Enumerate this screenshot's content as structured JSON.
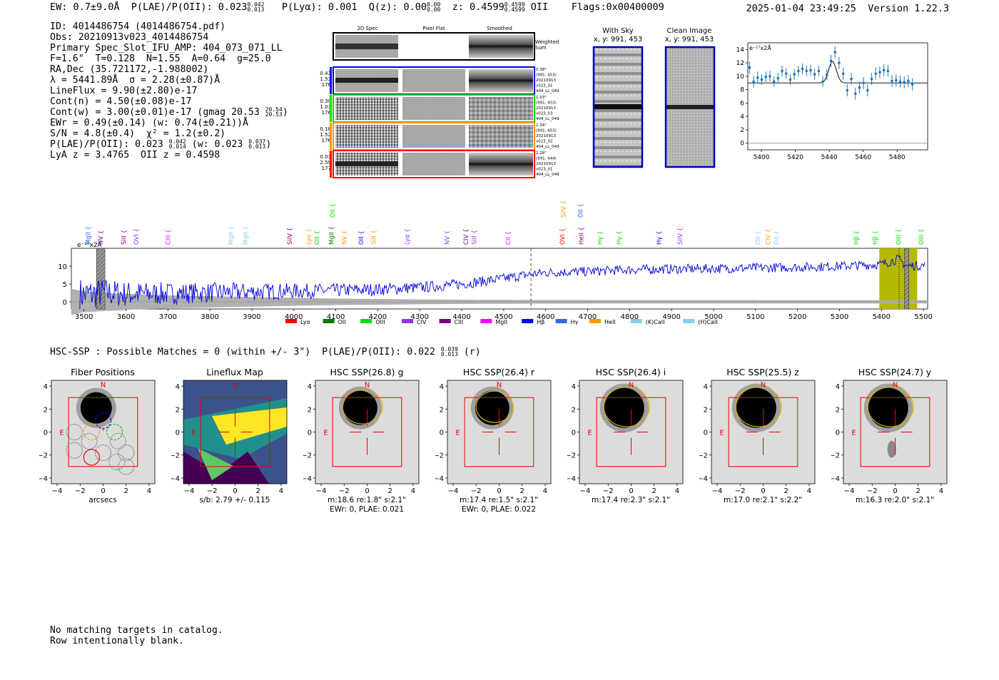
{
  "header": {
    "summary": "EW: 0.7±9.0Å  P(LAE)/P(OII): 0.023",
    "plae_hi": "0.042",
    "plae_lo": "0.013",
    "plya": "P(Lyα): 0.001",
    "qz": "Q(z): 0.00",
    "qz_hi": "0.00",
    "qz_lo": "0.00",
    "z": "z: 0.4599",
    "z_hi": "0.4599",
    "z_lo": "0.4599",
    "z_line": "OII",
    "flags": "Flags:0x00400009",
    "timestamp": "2025-01-04 23:49:25",
    "version": "Version 1.22.3"
  },
  "info": {
    "id": "ID: 4014486754 (4014486754.pdf)",
    "obs": "Obs: 20210913v023_4014486754",
    "primary": "Primary Spec_Slot_IFU_AMP: 404_073_071_LL",
    "fiber": "F=1.6\"  T=0.128  N=1.55  A=0.64  g=25.0",
    "radec": "RA,Dec (35.721172,-1.988002)",
    "lambda": "λ = 5441.89Å  σ = 2.28(±0.87)Å",
    "lineflux": "LineFlux = 9.90(±2.80)e-17",
    "contn": "Cont(n) = 4.50(±0.08)e-17",
    "contw": "Cont(w) = 3.00(±0.01)e-17 (gmag 20.53",
    "contw_hi": "20.54",
    "contw_lo": "20.53",
    "contw_end": ")",
    "ewr": "EWr = 0.49(±0.14) (w: 0.74(±0.21))Å",
    "sn": "S/N = 4.8(±0.4)  χ² = 1.2(±0.2)",
    "plae": "P(LAE)/P(OII): 0.023",
    "plae_hi": "0.042",
    "plae_lo": "0.014",
    "plae_w": "(w: 0.023",
    "plae_w_hi": "0.037",
    "plae_w_lo": "0.013",
    "plae_end": ")",
    "lyaz": "LyA z = 3.4765  OII z = 0.4598"
  },
  "cutouts": {
    "columns": [
      "2D Spec",
      "Pixel Flat",
      "Smoothed"
    ],
    "weighted_label": [
      "Weighted",
      "Sum"
    ],
    "rows": [
      {
        "left": [
          "0.43",
          "1.53",
          "176"
        ],
        "right": [
          "0.38\"",
          "(991, 453)",
          "20210913",
          "v023_01",
          "404_LL_049"
        ],
        "color": "#0000ff"
      },
      {
        "left": [
          "0.30",
          "1.03",
          "176"
        ],
        "right": [
          "1.03\"",
          "(991, 453)",
          "20210913",
          "v023_03",
          "404_LL_049"
        ],
        "color": "#00e000"
      },
      {
        "left": [
          "0.18",
          "1.52",
          "176"
        ],
        "right": [
          "1.34\"",
          "(991, 453)",
          "20210913",
          "v023_02",
          "404_LL_049"
        ],
        "color": "#ff9900"
      },
      {
        "left": [
          "0.03",
          "2.59",
          "177"
        ],
        "right": [
          "2.28\"",
          "(991, 444)",
          "20210913",
          "v023_01",
          "404_LL_048"
        ],
        "color": "#ff0000"
      }
    ]
  },
  "sky": {
    "with_sky": "With Sky",
    "with_sky_xy": "x, y: 991, 453",
    "clean": "Clean Image",
    "clean_xy": "x, y: 991, 453"
  },
  "zoom_chart": {
    "type": "scatter",
    "ylabel": "e⁻¹⁷x2Å",
    "xlim": [
      5392,
      5498
    ],
    "ylim": [
      -1,
      15
    ],
    "xticks": [
      5400,
      5420,
      5440,
      5460,
      5480
    ],
    "yticks": [
      0,
      2,
      4,
      6,
      8,
      10,
      12,
      14
    ],
    "x": [
      5393.0,
      5395.4,
      5397.8,
      5400.2,
      5402.6,
      5405.0,
      5407.4,
      5409.8,
      5412.2,
      5414.6,
      5417.0,
      5419.4,
      5421.8,
      5424.2,
      5426.6,
      5429.0,
      5431.4,
      5433.8,
      5436.2,
      5438.6,
      5441.0,
      5443.4,
      5445.8,
      5448.2,
      5450.6,
      5453.0,
      5455.4,
      5457.8,
      5460.2,
      5462.6,
      5465.0,
      5467.4,
      5469.8,
      5472.2,
      5474.6,
      5477.0,
      5479.4,
      5481.8,
      5484.2,
      5486.6,
      5489.0
    ],
    "y": [
      11.3,
      9.2,
      9.8,
      9.5,
      9.9,
      10.0,
      9.2,
      9.7,
      10.8,
      10.4,
      9.5,
      10.3,
      10.8,
      11.1,
      10.8,
      10.9,
      10.3,
      10.8,
      9.2,
      10.2,
      12.3,
      13.6,
      12.0,
      10.4,
      7.9,
      9.6,
      7.4,
      8.3,
      9.0,
      7.9,
      9.6,
      10.4,
      10.6,
      10.9,
      10.8,
      9.3,
      9.4,
      9.2,
      9.1,
      9.3,
      8.8
    ],
    "err": [
      0.9,
      0.9,
      0.9,
      0.8,
      0.8,
      0.8,
      0.8,
      0.8,
      0.8,
      0.8,
      0.8,
      0.8,
      0.8,
      0.8,
      0.8,
      0.8,
      0.8,
      0.8,
      0.8,
      0.8,
      0.9,
      0.9,
      0.9,
      0.9,
      0.9,
      0.9,
      0.9,
      0.9,
      0.9,
      0.9,
      0.9,
      0.9,
      0.9,
      0.9,
      0.9,
      0.9,
      0.9,
      0.9,
      0.9,
      0.9,
      0.9
    ],
    "model": {
      "continuum": 9.0,
      "amplitude": 3.2,
      "center": 5441.9,
      "sigma": 2.28
    }
  },
  "spectrum_chart": {
    "type": "line",
    "ylabel": "e⁻¹⁷x2Å",
    "xlim": [
      3470,
      5510
    ],
    "ylim": [
      -2,
      15
    ],
    "xticks": [
      3500,
      3600,
      3700,
      3800,
      3900,
      4000,
      4100,
      4200,
      4300,
      4400,
      4500,
      4600,
      4700,
      4800,
      4900,
      5000,
      5100,
      5200,
      5300,
      5400,
      5500
    ],
    "yticks": [
      0,
      5,
      10
    ],
    "anchor_x": [
      3500,
      3550,
      3600,
      3700,
      3800,
      3900,
      4000,
      4100,
      4200,
      4300,
      4400,
      4500,
      4550,
      4600,
      4700,
      4800,
      4900,
      5000,
      5100,
      5200,
      5300,
      5400,
      5440,
      5460,
      5500
    ],
    "anchor_y": [
      2.0,
      2.5,
      2.2,
      2.3,
      2.6,
      2.8,
      3.0,
      3.2,
      3.5,
      4.0,
      5.0,
      6.5,
      7.5,
      8.2,
      8.5,
      9.0,
      9.2,
      9.3,
      9.5,
      9.7,
      10.0,
      10.5,
      12.0,
      10.0,
      10.2
    ],
    "noise_x": [
      3470,
      3500,
      3600,
      3700,
      3800,
      3900,
      4000,
      4100,
      4200,
      4300,
      4400,
      4500,
      4600,
      5510
    ],
    "noise_amp": [
      8.0,
      6.5,
      5.0,
      4.0,
      3.5,
      3.0,
      2.5,
      2.0,
      1.8,
      1.5,
      1.3,
      1.2,
      1.1,
      1.0
    ],
    "dashed_x": 4565,
    "highlight_band": [
      5395,
      5485
    ],
    "marker_x": 5442,
    "hatched": [
      [
        3530,
        3550
      ],
      [
        5455,
        5465
      ]
    ],
    "legend": [
      {
        "label": "Lyα",
        "color": "#ff0000"
      },
      {
        "label": "OII",
        "color": "#007a00"
      },
      {
        "label": "OIII",
        "color": "#00e000"
      },
      {
        "label": "CIV",
        "color": "#9933ee"
      },
      {
        "label": "CIII",
        "color": "#800080"
      },
      {
        "label": "MgII",
        "color": "#ff00ff"
      },
      {
        "label": "Hβ",
        "color": "#0000ff"
      },
      {
        "label": "Hγ",
        "color": "#3366ee"
      },
      {
        "label": "HeII",
        "color": "#ff9900"
      },
      {
        "label": "(K)CaII",
        "color": "#87ceeb"
      },
      {
        "label": "(H)CaII",
        "color": "#87ceeb"
      }
    ],
    "line_labels": [
      {
        "x": 3510,
        "label": "MgII",
        "color": "#3366ee",
        "row": 0
      },
      {
        "x": 3540,
        "label": "NV",
        "color": "#800080",
        "row": 0
      },
      {
        "x": 3595,
        "label": "SiII",
        "color": "#800080",
        "row": 0
      },
      {
        "x": 3625,
        "label": "OVI",
        "color": "#9933ee",
        "row": 0
      },
      {
        "x": 3700,
        "label": "CIII",
        "color": "#ff00ff",
        "row": 0
      },
      {
        "x": 3850,
        "label": "MgII",
        "color": "#87ceeb",
        "row": 0
      },
      {
        "x": 3885,
        "label": "MgII",
        "color": "#87ceeb",
        "row": 0
      },
      {
        "x": 3990,
        "label": "SiIV",
        "color": "#800080",
        "row": 0
      },
      {
        "x": 4035,
        "label": "Lyα",
        "color": "#ff9900",
        "row": 0
      },
      {
        "x": 4055,
        "label": "OII",
        "color": "#00e000",
        "row": 0
      },
      {
        "x": 4090,
        "label": "MgII",
        "color": "#007a00",
        "row": 0
      },
      {
        "x": 4092,
        "label": "OII",
        "color": "#00e000",
        "row": 1
      },
      {
        "x": 4120,
        "label": "NV",
        "color": "#ff9900",
        "row": 0
      },
      {
        "x": 4160,
        "label": "OII",
        "color": "#0000ff",
        "row": 0
      },
      {
        "x": 4190,
        "label": "SiII",
        "color": "#ff9900",
        "row": 0
      },
      {
        "x": 4270,
        "label": "Lyα",
        "color": "#9933ee",
        "row": 0
      },
      {
        "x": 4365,
        "label": "NV",
        "color": "#9933ee",
        "row": 0
      },
      {
        "x": 4410,
        "label": "CIV",
        "color": "#800080",
        "row": 0
      },
      {
        "x": 4430,
        "label": "SiII",
        "color": "#9933ee",
        "row": 0
      },
      {
        "x": 4510,
        "label": "CII",
        "color": "#ff00ff",
        "row": 0
      },
      {
        "x": 4640,
        "label": "OVI",
        "color": "#ff0000",
        "row": 0
      },
      {
        "x": 4642,
        "label": "SiIV",
        "color": "#ff9900",
        "row": 1
      },
      {
        "x": 4685,
        "label": "HeII",
        "color": "#800080",
        "row": 0
      },
      {
        "x": 4683,
        "label": "OII",
        "color": "#3366ee",
        "row": 1
      },
      {
        "x": 4730,
        "label": "Hγ",
        "color": "#00e000",
        "row": 0
      },
      {
        "x": 4775,
        "label": "Hγ",
        "color": "#00e000",
        "row": 0
      },
      {
        "x": 4870,
        "label": "Hγ",
        "color": "#0000ff",
        "row": 0
      },
      {
        "x": 4920,
        "label": "SiIV",
        "color": "#9933ee",
        "row": 0
      },
      {
        "x": 5105,
        "label": "OII",
        "color": "#87ceeb",
        "row": 0
      },
      {
        "x": 5130,
        "label": "CIV",
        "color": "#ff9900",
        "row": 0
      },
      {
        "x": 5150,
        "label": "OII",
        "color": "#87ceeb",
        "row": 0
      },
      {
        "x": 5340,
        "label": "Hβ",
        "color": "#00e000",
        "row": 0
      },
      {
        "x": 5385,
        "label": "Hβ",
        "color": "#00e000",
        "row": 0
      },
      {
        "x": 5440,
        "label": "OIII",
        "color": "#00e000",
        "row": 0
      },
      {
        "x": 5495,
        "label": "OIII",
        "color": "#00e000",
        "row": 0
      }
    ]
  },
  "hsc": {
    "title": "HSC-SSP : Possible Matches = 0 (within +/- 3\")  P(LAE)/P(OII): 0.022",
    "title_hi": "0.039",
    "title_lo": "0.013",
    "title_end": "(r)",
    "panels": [
      {
        "title": "Fiber Positions",
        "caption": "arcsecs",
        "caption2": "",
        "kind": "fiber"
      },
      {
        "title": "Lineflux Map",
        "caption": "s/b: 2.79 +/- 0.115",
        "caption2": "",
        "kind": "lineflux"
      },
      {
        "title": "HSC SSP(26.8) g",
        "caption": "m:18.6  re:1.8\"  s:2.1\"",
        "caption2": "EWr: 0, PLAE: 0.021",
        "kind": "hsc"
      },
      {
        "title": "HSC SSP(26.4) r",
        "caption": "m:17.4  re:1.5\"  s:2.1\"",
        "caption2": "EWr: 0, PLAE: 0.022",
        "kind": "hsc"
      },
      {
        "title": "HSC SSP(26.4) i",
        "caption": "m:17.4  re:2.3\"  s:2.1\"",
        "caption2": "",
        "kind": "hsc"
      },
      {
        "title": "HSC SSP(25.5) z",
        "caption": "m:17.0  re:2.1\"  s:2.2\"",
        "caption2": "",
        "kind": "hsc"
      },
      {
        "title": "HSC SSP(24.7) y",
        "caption": "m:16.3  re:2.0\"  s:2.1\"",
        "caption2": "",
        "kind": "hsc"
      }
    ],
    "axis_ticks": [
      "−4",
      "−2",
      "0",
      "2",
      "4"
    ],
    "north": "N",
    "east": "E"
  },
  "footer": {
    "line1": "No matching targets in catalog.",
    "line2": "Row intentionally blank."
  }
}
